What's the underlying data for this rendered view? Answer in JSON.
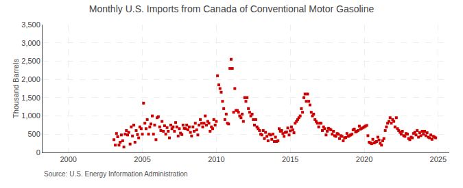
{
  "chart_data": {
    "type": "scatter",
    "title": "Monthly U.S. Imports from Canada of Conventional Motor Gasoline",
    "ylabel": "Thousand Barrels",
    "annotations": [
      "Source: U.S. Energy Information Administration"
    ],
    "color": "#cc0000",
    "marker": "square",
    "grid": true,
    "xlim": [
      1998.25,
      2025.75
    ],
    "xticks": [
      2000,
      2005,
      2010,
      2015,
      2020,
      2025
    ],
    "ylim": [
      0,
      3500
    ],
    "yticks": [
      0,
      500,
      {
        "value": 1000,
        "label": "1,000"
      },
      {
        "value": 1500,
        "label": "1,500"
      },
      {
        "value": 2000,
        "label": "2,000"
      },
      {
        "value": 2500,
        "label": "2,500"
      },
      {
        "value": 3000,
        "label": "3,000"
      },
      {
        "value": 3500,
        "label": "3,500"
      }
    ],
    "x": [
      2003.08,
      2003.17,
      2003.25,
      2003.33,
      2003.42,
      2003.5,
      2003.58,
      2003.67,
      2003.75,
      2003.83,
      2003.92,
      2004.0,
      2004.08,
      2004.17,
      2004.25,
      2004.33,
      2004.42,
      2004.5,
      2004.58,
      2004.67,
      2004.75,
      2004.83,
      2004.92,
      2005.0,
      2005.08,
      2005.17,
      2005.25,
      2005.33,
      2005.42,
      2005.5,
      2005.58,
      2005.67,
      2005.75,
      2005.83,
      2005.92,
      2006.0,
      2006.08,
      2006.17,
      2006.25,
      2006.33,
      2006.42,
      2006.5,
      2006.58,
      2006.67,
      2006.75,
      2006.83,
      2006.92,
      2007.0,
      2007.08,
      2007.17,
      2007.25,
      2007.33,
      2007.42,
      2007.5,
      2007.58,
      2007.67,
      2007.75,
      2007.83,
      2007.92,
      2008.0,
      2008.08,
      2008.17,
      2008.25,
      2008.33,
      2008.42,
      2008.5,
      2008.58,
      2008.67,
      2008.75,
      2008.83,
      2008.92,
      2009.0,
      2009.08,
      2009.17,
      2009.25,
      2009.33,
      2009.42,
      2009.5,
      2009.58,
      2009.67,
      2009.75,
      2009.83,
      2009.92,
      2010.0,
      2010.08,
      2010.17,
      2010.25,
      2010.33,
      2010.42,
      2010.5,
      2010.58,
      2010.67,
      2010.75,
      2010.83,
      2010.92,
      2011.0,
      2011.08,
      2011.17,
      2011.25,
      2011.33,
      2011.42,
      2011.5,
      2011.58,
      2011.67,
      2011.75,
      2011.83,
      2011.92,
      2012.0,
      2012.08,
      2012.17,
      2012.25,
      2012.33,
      2012.42,
      2012.5,
      2012.58,
      2012.67,
      2012.75,
      2012.83,
      2012.92,
      2013.0,
      2013.08,
      2013.17,
      2013.25,
      2013.33,
      2013.42,
      2013.5,
      2013.58,
      2013.67,
      2013.75,
      2013.83,
      2013.92,
      2014.0,
      2014.08,
      2014.17,
      2014.25,
      2014.33,
      2014.42,
      2014.5,
      2014.58,
      2014.67,
      2014.75,
      2014.83,
      2014.92,
      2015.0,
      2015.08,
      2015.17,
      2015.25,
      2015.33,
      2015.42,
      2015.5,
      2015.58,
      2015.67,
      2015.75,
      2015.83,
      2015.92,
      2016.0,
      2016.08,
      2016.17,
      2016.25,
      2016.33,
      2016.42,
      2016.5,
      2016.58,
      2016.67,
      2016.75,
      2016.83,
      2016.92,
      2017.0,
      2017.08,
      2017.17,
      2017.25,
      2017.33,
      2017.42,
      2017.5,
      2017.58,
      2017.67,
      2017.75,
      2017.83,
      2017.92,
      2018.0,
      2018.08,
      2018.17,
      2018.25,
      2018.33,
      2018.42,
      2018.5,
      2018.58,
      2018.67,
      2018.75,
      2018.83,
      2018.92,
      2019.0,
      2019.08,
      2019.17,
      2019.25,
      2019.33,
      2019.42,
      2019.5,
      2019.58,
      2019.67,
      2019.75,
      2019.83,
      2019.92,
      2020.0,
      2020.08,
      2020.17,
      2020.25,
      2020.33,
      2020.42,
      2020.5,
      2020.58,
      2020.67,
      2020.75,
      2020.83,
      2020.92,
      2021.0,
      2021.08,
      2021.17,
      2021.25,
      2021.33,
      2021.42,
      2021.5,
      2021.58,
      2021.67,
      2021.75,
      2021.83,
      2021.92,
      2022.0,
      2022.08,
      2022.17,
      2022.25,
      2022.33,
      2022.42,
      2022.5,
      2022.58,
      2022.67,
      2022.75,
      2022.83,
      2022.92,
      2023.0,
      2023.08,
      2023.17,
      2023.25,
      2023.33,
      2023.42,
      2023.5,
      2023.58,
      2023.67,
      2023.75,
      2023.83,
      2023.92,
      2024.0,
      2024.08,
      2024.17,
      2024.25,
      2024.33,
      2024.42,
      2024.5,
      2024.58,
      2024.67,
      2024.75,
      2024.83
    ],
    "values": [
      350,
      200,
      520,
      430,
      200,
      280,
      480,
      320,
      150,
      500,
      600,
      480,
      550,
      230,
      700,
      450,
      750,
      280,
      600,
      490,
      400,
      700,
      650,
      500,
      1350,
      800,
      650,
      900,
      500,
      700,
      780,
      1000,
      500,
      750,
      350,
      950,
      980,
      700,
      600,
      850,
      580,
      730,
      500,
      680,
      580,
      400,
      750,
      650,
      700,
      580,
      820,
      700,
      450,
      650,
      530,
      490,
      750,
      660,
      650,
      750,
      620,
      700,
      550,
      450,
      700,
      580,
      800,
      620,
      480,
      750,
      900,
      800,
      700,
      800,
      1000,
      750,
      850,
      800,
      580,
      700,
      650,
      900,
      750,
      850,
      2100,
      1850,
      1750,
      1650,
      1400,
      1200,
      900,
      1050,
      800,
      780,
      2300,
      2550,
      2300,
      1100,
      1750,
      1150,
      1150,
      1100,
      1000,
      950,
      1050,
      850,
      1500,
      1400,
      1500,
      1200,
      1100,
      1000,
      1050,
      900,
      750,
      900,
      700,
      650,
      600,
      500,
      480,
      600,
      380,
      550,
      440,
      320,
      500,
      480,
      360,
      500,
      300,
      420,
      300,
      320,
      650,
      580,
      600,
      520,
      440,
      550,
      560,
      670,
      480,
      590,
      700,
      620,
      540,
      800,
      850,
      900,
      950,
      1000,
      1200,
      1100,
      1500,
      1600,
      1400,
      1600,
      1400,
      1300,
      1100,
      1000,
      1050,
      900,
      850,
      800,
      700,
      800,
      800,
      600,
      700,
      650,
      480,
      580,
      660,
      640,
      620,
      500,
      580,
      460,
      440,
      520,
      500,
      380,
      460,
      440,
      320,
      400,
      410,
      520,
      440,
      460,
      480,
      500,
      620,
      640,
      560,
      580,
      600,
      720,
      640,
      660,
      680,
      700,
      720,
      740,
      460,
      280,
      260,
      240,
      360,
      260,
      280,
      300,
      420,
      340,
      250,
      200,
      320,
      380,
      600,
      700,
      800,
      850,
      950,
      800,
      900,
      850,
      700,
      950,
      650,
      600,
      550,
      500,
      580,
      460,
      440,
      520,
      500,
      380,
      350,
      420,
      400,
      520,
      550,
      480,
      600,
      420,
      540,
      460,
      580,
      500,
      580,
      460,
      540,
      420,
      400,
      480,
      360,
      440,
      420,
      400
    ]
  }
}
